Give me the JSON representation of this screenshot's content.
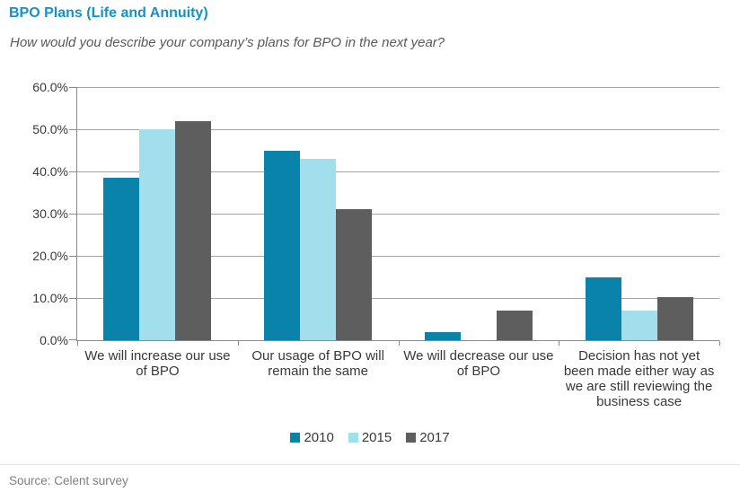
{
  "header": {
    "title": "BPO Plans (Life and Annuity)",
    "subtitle": "How would you describe your company’s plans for BPO in the next year?"
  },
  "chart_data": {
    "type": "bar",
    "title": "BPO Plans (Life and Annuity)",
    "subtitle": "How would you describe your company’s plans for BPO in the next year?",
    "categories": [
      "We will increase our use of BPO",
      "Our usage of BPO will remain the same",
      "We will decrease our use of BPO",
      "Decision has not yet been made either way as we are still reviewing the business case"
    ],
    "category_lines": [
      [
        "We will increase our use",
        "of BPO"
      ],
      [
        "Our usage of BPO will",
        "remain the same"
      ],
      [
        "We will decrease our use",
        "of BPO"
      ],
      [
        "Decision has not yet",
        "been made either way as",
        "we are still reviewing the",
        "business case"
      ]
    ],
    "series": [
      {
        "name": "2010",
        "color": "#0983aa",
        "values": [
          38.5,
          45.0,
          2.0,
          15.0
        ]
      },
      {
        "name": "2015",
        "color": "#a2dfec",
        "values": [
          50.0,
          43.0,
          0.0,
          7.0
        ]
      },
      {
        "name": "2017",
        "color": "#5e5e5e",
        "values": [
          52.0,
          31.0,
          7.0,
          10.3
        ]
      }
    ],
    "xlabel": "",
    "ylabel": "",
    "ylim": [
      0,
      60
    ],
    "y_ticks": [
      0,
      10,
      20,
      30,
      40,
      50,
      60
    ],
    "y_tick_labels": [
      "0.0%",
      "10.0%",
      "20.0%",
      "30.0%",
      "40.0%",
      "50.0%",
      "60.0%"
    ],
    "grid": true,
    "legend_position": "bottom",
    "legend_items": [
      "2010",
      "2015",
      "2017"
    ]
  },
  "footer": {
    "source": "Source: Celent survey"
  },
  "colors": {
    "title": "#1591c8",
    "subtitle": "#595959",
    "series_2010": "#0983aa",
    "series_2015": "#a2dfec",
    "series_2017": "#5e5e5e",
    "gridline": "#a3a3a3",
    "axis": "#8a8a8a",
    "tick_label": "#383838",
    "source_text": "#7f7f7f"
  }
}
